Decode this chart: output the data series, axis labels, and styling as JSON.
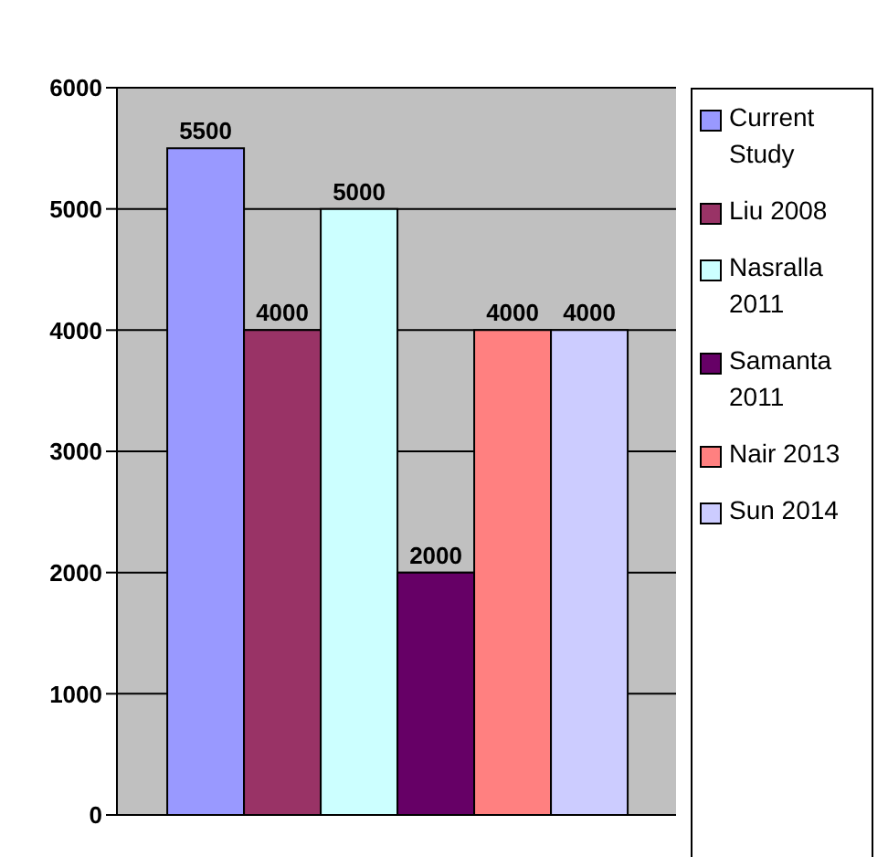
{
  "chart_data": {
    "type": "bar",
    "categories": [
      null
    ],
    "series": [
      {
        "name": "Current Study",
        "color": "#9999ff",
        "values": [
          5500
        ]
      },
      {
        "name": "Liu 2008",
        "color": "#993366",
        "values": [
          4000
        ]
      },
      {
        "name": "Nasralla 2011",
        "color": "#ccffff",
        "values": [
          5000
        ]
      },
      {
        "name": "Samanta 2011",
        "color": "#660066",
        "values": [
          2000
        ]
      },
      {
        "name": "Nair 2013",
        "color": "#ff8080",
        "values": [
          4000
        ]
      },
      {
        "name": "Sun 2014",
        "color": "#ccccff",
        "values": [
          4000
        ]
      }
    ],
    "ylim": [
      0,
      6000
    ],
    "yticks": [
      0,
      1000,
      2000,
      3000,
      4000,
      5000,
      6000
    ],
    "grid": "y",
    "legend": "right",
    "data_labels": true
  }
}
